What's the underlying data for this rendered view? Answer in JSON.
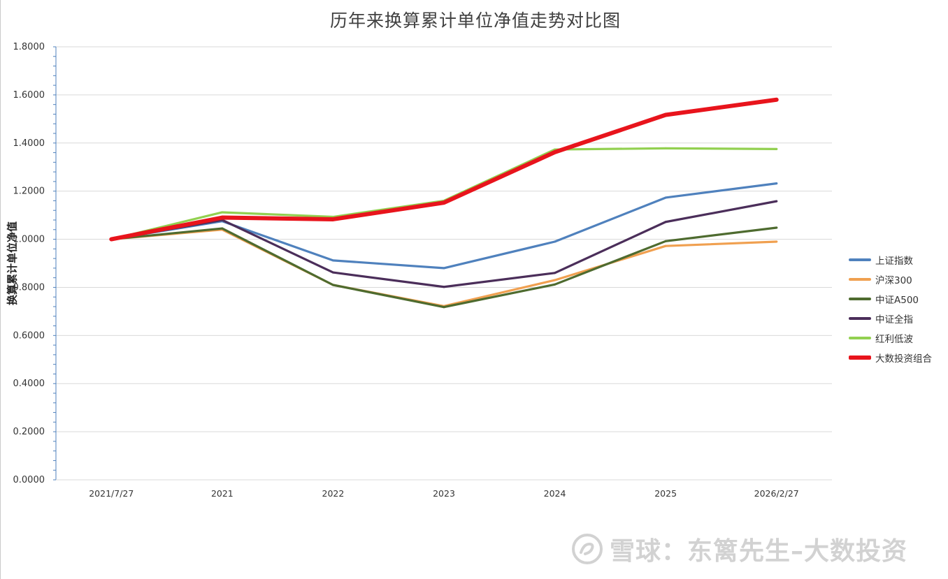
{
  "chart_data": {
    "type": "line",
    "title": "历年来换算累计单位净值走势对比图",
    "xlabel": "",
    "ylabel": "换算累计单位净值",
    "categories": [
      "2021/7/27",
      "2021",
      "2022",
      "2023",
      "2024",
      "2025",
      "2026/2/27"
    ],
    "ylim": [
      0,
      1.8
    ],
    "yticks": [
      "0.0000",
      "0.2000",
      "0.4000",
      "0.6000",
      "0.8000",
      "1.0000",
      "1.2000",
      "1.4000",
      "1.6000",
      "1.8000"
    ],
    "grid": true,
    "legend_position": "right",
    "series": [
      {
        "name": "上证指数",
        "color": "#4f81bd",
        "values": [
          1.0,
          1.075,
          0.912,
          0.88,
          0.99,
          1.173,
          1.232
        ]
      },
      {
        "name": "沪深300",
        "color": "#f0a050",
        "values": [
          1.0,
          1.04,
          0.81,
          0.722,
          0.83,
          0.972,
          0.99
        ]
      },
      {
        "name": "中证A500",
        "color": "#4e6b2f",
        "values": [
          1.0,
          1.045,
          0.81,
          0.718,
          0.812,
          0.992,
          1.048
        ]
      },
      {
        "name": "中证全指",
        "color": "#4b2e5a",
        "values": [
          1.0,
          1.08,
          0.862,
          0.802,
          0.86,
          1.072,
          1.158
        ]
      },
      {
        "name": "红利低波",
        "color": "#92d050",
        "values": [
          1.0,
          1.112,
          1.093,
          1.16,
          1.373,
          1.378,
          1.375
        ]
      },
      {
        "name": "大数投资组合",
        "color": "#e8141c",
        "values": [
          1.0,
          1.09,
          1.083,
          1.152,
          1.362,
          1.517,
          1.58
        ]
      }
    ]
  },
  "watermark": {
    "text": "雪球：东篱先生–大数投资",
    "logo_icon": "snowball-logo-icon"
  }
}
